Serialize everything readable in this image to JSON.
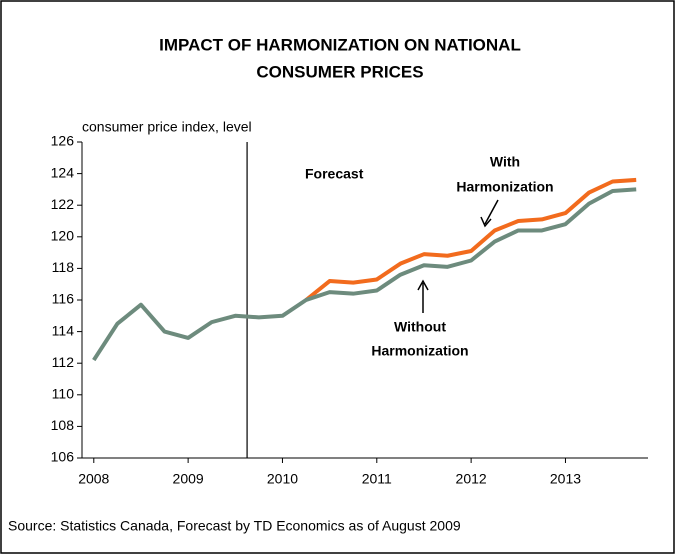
{
  "chart_data": {
    "type": "line",
    "title": "IMPACT OF HARMONIZATION ON NATIONAL",
    "title_line2": "CONSUMER PRICES",
    "y_axis_label": "consumer price index, level",
    "source": "Source: Statistics Canada, Forecast by TD Economics as of August 2009",
    "annotations": {
      "forecast": "Forecast",
      "with_1": "With",
      "with_2": "Harmonization",
      "without_1": "Without",
      "without_2": "Harmonization"
    },
    "forecast_start": 2009.625,
    "x": [
      2008,
      2008.25,
      2008.5,
      2008.75,
      2009,
      2009.25,
      2009.5,
      2009.75,
      2010,
      2010.25,
      2010.5,
      2010.75,
      2011,
      2011.25,
      2011.5,
      2011.75,
      2012,
      2012.25,
      2012.5,
      2012.75,
      2013,
      2013.25,
      2013.5,
      2013.75
    ],
    "series": [
      {
        "name": "With Harmonization",
        "color": "#f26b1d",
        "values": [
          null,
          null,
          null,
          null,
          null,
          null,
          null,
          null,
          null,
          116.0,
          117.2,
          117.1,
          117.3,
          118.3,
          118.9,
          118.8,
          119.1,
          120.4,
          121.0,
          121.1,
          121.5,
          122.8,
          123.5,
          123.6
        ]
      },
      {
        "name": "Without Harmonization",
        "color": "#6d8b7d",
        "values": [
          112.2,
          114.5,
          115.7,
          114.0,
          113.6,
          114.6,
          115.0,
          114.9,
          115.0,
          116.0,
          116.5,
          116.4,
          116.6,
          117.6,
          118.2,
          118.1,
          118.5,
          119.7,
          120.4,
          120.4,
          120.8,
          122.1,
          122.9,
          123.0
        ]
      }
    ],
    "xlim": [
      2007.875,
      2013.875
    ],
    "xticks": [
      2008,
      2009,
      2010,
      2011,
      2012,
      2013
    ],
    "ylim": [
      106,
      126
    ],
    "yticks": [
      106,
      108,
      110,
      112,
      114,
      116,
      118,
      120,
      122,
      124,
      126
    ]
  }
}
